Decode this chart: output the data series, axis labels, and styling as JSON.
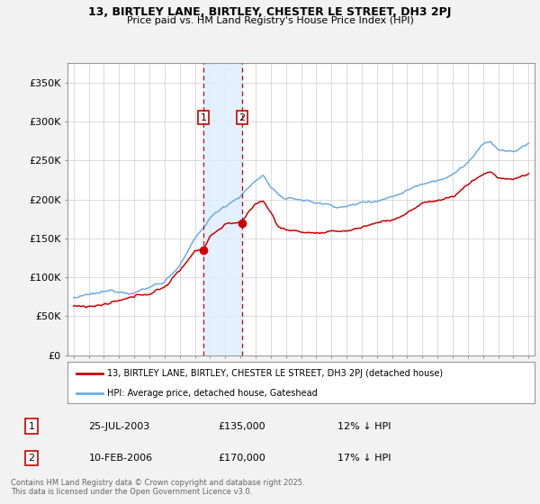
{
  "title1": "13, BIRTLEY LANE, BIRTLEY, CHESTER LE STREET, DH3 2PJ",
  "title2": "Price paid vs. HM Land Registry's House Price Index (HPI)",
  "ylabel_ticks": [
    "£0",
    "£50K",
    "£100K",
    "£150K",
    "£200K",
    "£250K",
    "£300K",
    "£350K"
  ],
  "ytick_vals": [
    0,
    50000,
    100000,
    150000,
    200000,
    250000,
    300000,
    350000
  ],
  "ylim": [
    0,
    375000
  ],
  "xlim_start": 1994.6,
  "xlim_end": 2025.4,
  "sale1_x": 2003.56,
  "sale1_y": 135000,
  "sale2_x": 2006.12,
  "sale2_y": 170000,
  "legend_line1": "13, BIRTLEY LANE, BIRTLEY, CHESTER LE STREET, DH3 2PJ (detached house)",
  "legend_line2": "HPI: Average price, detached house, Gateshead",
  "table_row1": [
    "1",
    "25-JUL-2003",
    "£135,000",
    "12% ↓ HPI"
  ],
  "table_row2": [
    "2",
    "10-FEB-2006",
    "£170,000",
    "17% ↓ HPI"
  ],
  "footer": "Contains HM Land Registry data © Crown copyright and database right 2025.\nThis data is licensed under the Open Government Licence v3.0.",
  "hpi_color": "#6aade4",
  "price_color": "#cc0000",
  "vline_color": "#cc0000",
  "shade_color": "#ddeeff",
  "background_color": "#f2f2f2",
  "plot_bg_color": "#ffffff",
  "grid_color": "#cccccc"
}
